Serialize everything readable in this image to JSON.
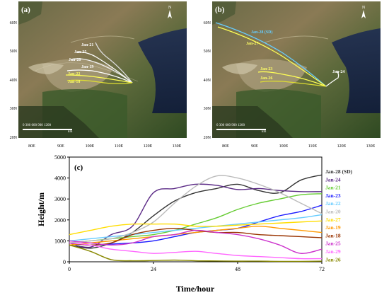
{
  "maps": [
    {
      "panel_label": "(a)",
      "north_label": "N",
      "scale_label": "0  300  600  900  1200",
      "scale_unit": "km",
      "lat_labels": [
        "60N",
        "50N",
        "40N",
        "30N",
        "20N"
      ],
      "lon_labels": [
        "80E",
        "90E",
        "100E",
        "110E",
        "120E",
        "130E"
      ],
      "trajectory_labels": [
        {
          "text": "Jan-21",
          "color": "#ffffff"
        },
        {
          "text": "Jan-25",
          "color": "#ffffff"
        },
        {
          "text": "Jan-20",
          "color": "#ffffff"
        },
        {
          "text": "Jan-19",
          "color": "#ffffff"
        },
        {
          "text": "Jan-22",
          "color": "#ffff66"
        },
        {
          "text": "Jan-18",
          "color": "#ffff66"
        }
      ]
    },
    {
      "panel_label": "(b)",
      "north_label": "N",
      "scale_label": "0  300  600  900  1200",
      "scale_unit": "km",
      "lat_labels": [
        "60N",
        "50N",
        "40N",
        "30N",
        "20N"
      ],
      "lon_labels": [
        "80E",
        "90E",
        "100E",
        "110E",
        "120E",
        "130E"
      ],
      "trajectory_labels": [
        {
          "text": "Jan-28 (SD)",
          "color": "#66ccff"
        },
        {
          "text": "Jan-27",
          "color": "#ffff66"
        },
        {
          "text": "Jan-23",
          "color": "#ffff66"
        },
        {
          "text": "Jan-26",
          "color": "#ffff66"
        },
        {
          "text": "Jan-24",
          "color": "#ffffff"
        }
      ]
    }
  ],
  "chart_data": {
    "type": "line",
    "panel_label": "(c)",
    "xlabel": "Time/hour",
    "ylabel": "Height/m",
    "xlim": [
      0,
      72
    ],
    "ylim": [
      0,
      5000
    ],
    "xticks": [
      0,
      24,
      48,
      72
    ],
    "yticks": [
      0,
      1000,
      2000,
      3000,
      4000,
      5000
    ],
    "x": [
      0,
      6,
      12,
      18,
      24,
      30,
      36,
      42,
      48,
      54,
      60,
      66,
      72
    ],
    "series": [
      {
        "name": "Jan-28 (SD)",
        "color": "#333333",
        "values": [
          800,
          650,
          900,
          1400,
          2200,
          2900,
          3300,
          3500,
          3700,
          3400,
          3300,
          3900,
          4150
        ]
      },
      {
        "name": "Jan-24",
        "color": "#5b2a86",
        "values": [
          900,
          700,
          1300,
          1700,
          3300,
          3500,
          3700,
          3650,
          3450,
          3500,
          3400,
          3350,
          3350
        ]
      },
      {
        "name": "Jan-21",
        "color": "#66cc33",
        "values": [
          900,
          1000,
          1100,
          1200,
          1300,
          1500,
          1800,
          2100,
          2500,
          2800,
          3000,
          3200,
          3250
        ]
      },
      {
        "name": "Jan-23",
        "color": "#1a1aff",
        "values": [
          900,
          800,
          850,
          900,
          1000,
          1200,
          1400,
          1500,
          1600,
          1900,
          2200,
          2400,
          2700
        ]
      },
      {
        "name": "Jan-22",
        "color": "#66ccff",
        "values": [
          1000,
          1100,
          1200,
          1300,
          1400,
          1500,
          1600,
          1700,
          1800,
          1900,
          2000,
          2100,
          2250
        ]
      },
      {
        "name": "Jan-20",
        "color": "#bbbbbb",
        "values": [
          900,
          1000,
          1100,
          1400,
          1900,
          2800,
          3600,
          4100,
          4000,
          3700,
          3300,
          2800,
          2300
        ]
      },
      {
        "name": "Jan-27",
        "color": "#ffdd00",
        "values": [
          1300,
          1500,
          1700,
          1800,
          1800,
          1800,
          1700,
          1700,
          1750,
          1800,
          1850,
          1900,
          1950
        ]
      },
      {
        "name": "Jan-19",
        "color": "#ff9900",
        "values": [
          800,
          900,
          1000,
          1100,
          1200,
          1300,
          1400,
          1500,
          1600,
          1700,
          1600,
          1500,
          1400
        ]
      },
      {
        "name": "Jan-18",
        "color": "#993300",
        "values": [
          900,
          800,
          900,
          1300,
          1500,
          1600,
          1500,
          1400,
          1400,
          1300,
          1250,
          1200,
          1150
        ]
      },
      {
        "name": "Jan-25",
        "color": "#cc33cc",
        "values": [
          1000,
          900,
          800,
          900,
          1200,
          1300,
          1500,
          1400,
          1300,
          1100,
          800,
          400,
          600
        ]
      },
      {
        "name": "Jan-29",
        "color": "#ff66ff",
        "values": [
          900,
          800,
          600,
          500,
          400,
          450,
          500,
          400,
          300,
          250,
          200,
          150,
          150
        ]
      },
      {
        "name": "Jan-26",
        "color": "#888800",
        "values": [
          800,
          500,
          100,
          50,
          60,
          80,
          50,
          40,
          30,
          30,
          20,
          20,
          30
        ]
      }
    ]
  }
}
